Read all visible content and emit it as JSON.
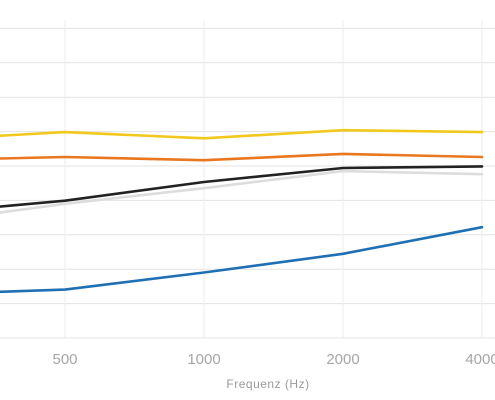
{
  "chart_data": {
    "type": "line",
    "x_scale": "log",
    "x": [
      250,
      500,
      1000,
      2000,
      4000
    ],
    "xticks": [
      "500",
      "1000",
      "2000",
      "4000"
    ],
    "xlabel": "Frequenz (Hz)",
    "ylabel": "",
    "ylim": [
      0,
      1
    ],
    "grid": true,
    "series": [
      {
        "color": "#f2c81c",
        "values": [
          0.635,
          0.66,
          0.64,
          0.666,
          0.66
        ]
      },
      {
        "color": "#e8771f",
        "values": [
          0.57,
          0.58,
          0.57,
          0.59,
          0.58
        ]
      },
      {
        "color": "#222222",
        "values": [
          0.4,
          0.44,
          0.5,
          0.545,
          0.55
        ]
      },
      {
        "color": "#dddddd",
        "values": [
          0.37,
          0.43,
          0.48,
          0.535,
          0.525
        ]
      },
      {
        "color": "#1f6fb5",
        "values": [
          0.14,
          0.155,
          0.21,
          0.27,
          0.355
        ]
      }
    ]
  }
}
